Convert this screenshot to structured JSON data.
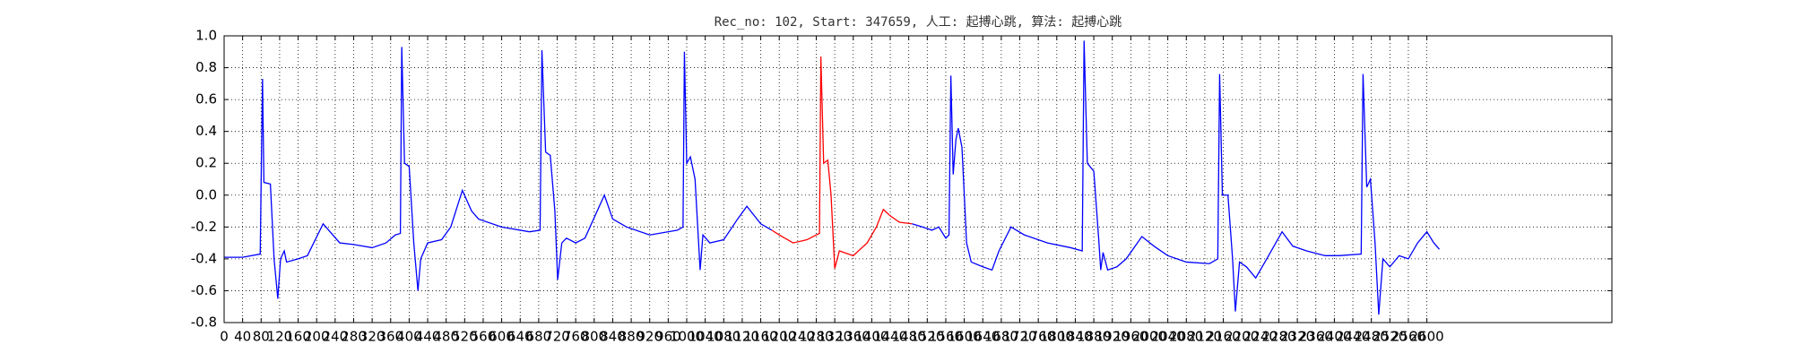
{
  "chart_data": {
    "type": "line",
    "title": "Rec_no: 102, Start: 347659, 人工: 起搏心跳, 算法: 起搏心跳",
    "xlim": [
      0,
      3000
    ],
    "xticks": [
      0,
      40,
      80,
      120,
      160,
      200,
      240,
      280,
      320,
      360,
      400,
      440,
      480,
      520,
      560,
      600,
      640,
      680,
      720,
      760,
      800,
      840,
      880,
      920,
      960,
      1000,
      1040,
      1080,
      1120,
      1160,
      1200,
      1240,
      1280,
      1320,
      1360,
      1400,
      1440,
      1480,
      1520,
      1560,
      1600,
      1640,
      1680,
      1720,
      1760,
      1800,
      1840,
      1880,
      1920,
      1960,
      2000,
      2040,
      2080,
      2120,
      2160,
      2200,
      2240,
      2280,
      2320,
      2360,
      2400,
      2440,
      2480,
      2520,
      2560,
      2600
    ],
    "ylim": [
      -0.8,
      1.0
    ],
    "yticks": [
      -0.8,
      -0.6,
      -0.4,
      -0.2,
      {
        "value": 0,
        "label": "0.0"
      },
      0.2,
      0.4,
      0.6,
      0.8,
      {
        "value": 1,
        "label": "1.0"
      }
    ],
    "grid": true,
    "series": [
      {
        "color": "#0000ff",
        "x": [
          0,
          40,
          78,
          81,
          83,
          86,
          100,
          108,
          116,
          122,
          130,
          135,
          160,
          180,
          214,
          250,
          280,
          320,
          350,
          370,
          381,
          384,
          390,
          400,
          410,
          419,
          425,
          440,
          470,
          490,
          515,
          535,
          550,
          600,
          660,
          683,
          687,
          695,
          705,
          715,
          721,
          730,
          740,
          760,
          780,
          822,
          840,
          870,
          920,
          980,
          992,
          995,
          1000,
          1008,
          1018,
          1029,
          1035,
          1050,
          1080,
          1110,
          1130,
          1160,
          1184,
          1335,
          1487,
          1510,
          1530,
          1545,
          1560,
          1567,
          1571,
          1576,
          1582,
          1587,
          1595,
          1605,
          1615,
          1640,
          1660,
          1675,
          1701,
          1730,
          1780,
          1830,
          1855,
          1859,
          1866,
          1880,
          1890,
          1895,
          1900,
          1910,
          1930,
          1950,
          1984,
          2010,
          2040,
          2080,
          2130,
          2148,
          2152,
          2158,
          2170,
          2180,
          2186,
          2195,
          2210,
          2230,
          2250,
          2287,
          2310,
          2340,
          2380,
          2410,
          2458,
          2462,
          2470,
          2478,
          2488,
          2496,
          2505,
          2520,
          2540,
          2560,
          2580,
          2600,
          2615,
          2627
        ],
        "values": [
          -0.39,
          -0.39,
          -0.37,
          0.3,
          0.73,
          0.08,
          0.07,
          -0.4,
          -0.65,
          -0.4,
          -0.35,
          -0.42,
          -0.4,
          -0.38,
          -0.18,
          -0.3,
          -0.31,
          -0.33,
          -0.3,
          -0.25,
          -0.24,
          0.93,
          0.2,
          0.18,
          -0.3,
          -0.6,
          -0.4,
          -0.3,
          -0.28,
          -0.2,
          0.03,
          -0.1,
          -0.15,
          -0.2,
          -0.23,
          -0.22,
          0.91,
          0.27,
          0.25,
          -0.1,
          -0.53,
          -0.3,
          -0.27,
          -0.3,
          -0.27,
          0.0,
          -0.15,
          -0.2,
          -0.25,
          -0.22,
          -0.2,
          0.9,
          0.2,
          0.24,
          0.1,
          -0.47,
          -0.25,
          -0.3,
          -0.28,
          -0.15,
          -0.07,
          -0.18,
          -0.22,
          null,
          -0.18,
          -0.2,
          -0.22,
          -0.2,
          -0.27,
          -0.25,
          0.75,
          0.13,
          0.35,
          0.42,
          0.3,
          -0.3,
          -0.42,
          -0.45,
          -0.47,
          -0.35,
          -0.2,
          -0.25,
          -0.3,
          -0.33,
          -0.35,
          0.97,
          0.2,
          0.15,
          -0.25,
          -0.47,
          -0.36,
          -0.47,
          -0.45,
          -0.4,
          -0.26,
          -0.32,
          -0.38,
          -0.42,
          -0.43,
          -0.4,
          0.76,
          0.0,
          0.0,
          -0.4,
          -0.73,
          -0.42,
          -0.45,
          -0.52,
          -0.42,
          -0.23,
          -0.32,
          -0.35,
          -0.38,
          -0.38,
          -0.37,
          0.76,
          0.05,
          0.1,
          -0.3,
          -0.75,
          -0.4,
          -0.45,
          -0.38,
          -0.4,
          -0.3,
          -0.23,
          -0.3,
          -0.34
        ]
      },
      {
        "color": "#ff0000",
        "x": [
          1184,
          1200,
          1230,
          1260,
          1280,
          1287,
          1290,
          1296,
          1305,
          1312,
          1320,
          1330,
          1360,
          1390,
          1410,
          1425,
          1440,
          1460,
          1487
        ],
        "values": [
          -0.22,
          -0.25,
          -0.3,
          -0.28,
          -0.25,
          -0.24,
          0.87,
          0.2,
          0.22,
          0.0,
          -0.46,
          -0.35,
          -0.38,
          -0.3,
          -0.2,
          -0.09,
          -0.13,
          -0.17,
          -0.18
        ]
      }
    ]
  }
}
